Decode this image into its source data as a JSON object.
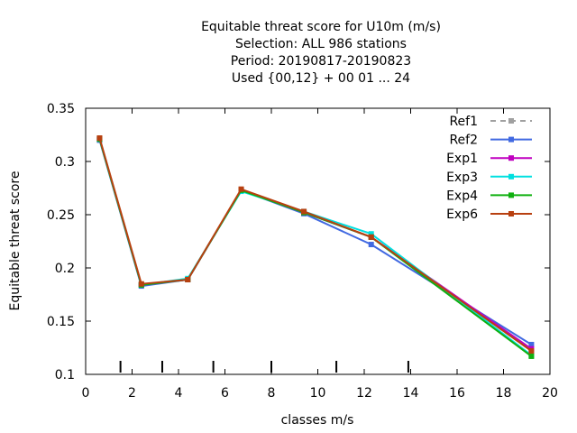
{
  "chart_data": {
    "type": "line",
    "title_lines": [
      "Equitable threat score  for U10m (m/s)",
      "Selection: ALL    986 stations",
      "Period: 20190817-20190823",
      "Used {00,12} + 00 01 ... 24"
    ],
    "xlabel": "classes m/s",
    "ylabel": "Equitable threat score",
    "xlim": [
      0,
      20
    ],
    "ylim": [
      0.1,
      0.35
    ],
    "xticks": [
      0,
      2,
      4,
      6,
      8,
      10,
      12,
      14,
      16,
      18,
      20
    ],
    "xtick_labels": [
      "0",
      "2",
      "4",
      "6",
      "8",
      "10",
      "12",
      "14",
      "16",
      "18",
      "20"
    ],
    "yticks": [
      0.1,
      0.15,
      0.2,
      0.25,
      0.3,
      0.35
    ],
    "ytick_labels": [
      "0.1",
      "0.15",
      "0.2",
      "0.25",
      "0.3",
      "0.35"
    ],
    "class_boundaries": [
      1.5,
      3.3,
      5.5,
      8.0,
      10.8,
      13.9
    ],
    "grid": false,
    "legend_position": "top-right",
    "x": [
      0.6,
      2.4,
      4.4,
      6.7,
      9.4,
      12.3,
      19.2
    ],
    "series": [
      {
        "name": "Ref1",
        "color": "#a0a0a0",
        "dashed": true,
        "values": [
          0.321,
          0.184,
          0.189,
          0.273,
          0.252,
          0.229,
          0.122
        ]
      },
      {
        "name": "Ref2",
        "color": "#4169e1",
        "dashed": false,
        "values": [
          0.32,
          0.183,
          0.189,
          0.273,
          0.251,
          0.222,
          0.128
        ]
      },
      {
        "name": "Exp1",
        "color": "#c000c0",
        "dashed": false,
        "values": [
          0.321,
          0.184,
          0.189,
          0.273,
          0.252,
          0.229,
          0.124
        ]
      },
      {
        "name": "Exp3",
        "color": "#00e0e0",
        "dashed": false,
        "values": [
          0.321,
          0.184,
          0.19,
          0.272,
          0.253,
          0.232,
          0.118
        ]
      },
      {
        "name": "Exp4",
        "color": "#10b010",
        "dashed": false,
        "values": [
          0.321,
          0.184,
          0.189,
          0.273,
          0.252,
          0.229,
          0.117
        ]
      },
      {
        "name": "Exp6",
        "color": "#b84010",
        "dashed": false,
        "values": [
          0.322,
          0.185,
          0.189,
          0.274,
          0.253,
          0.229,
          0.122
        ]
      }
    ]
  }
}
